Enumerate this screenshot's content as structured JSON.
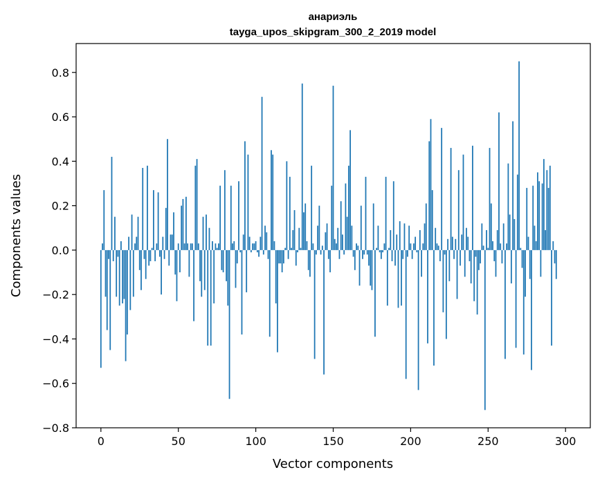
{
  "chart_data": {
    "type": "bar",
    "title": "анариэль",
    "subtitle": "tayga_upos_skipgram_300_2_2019 model",
    "xlabel": "Vector components",
    "ylabel": "Components values",
    "xlim": [
      -16,
      316
    ],
    "ylim": [
      -0.8,
      0.93
    ],
    "xticks": [
      0,
      50,
      100,
      150,
      200,
      250,
      300
    ],
    "xtick_labels": [
      "0",
      "50",
      "100",
      "150",
      "200",
      "250",
      "300"
    ],
    "yticks": [
      -0.8,
      -0.6,
      -0.4,
      -0.2,
      0.0,
      0.2,
      0.4,
      0.6,
      0.8
    ],
    "ytick_labels": [
      "−0.8",
      "−0.6",
      "−0.4",
      "−0.2",
      "0.0",
      "0.2",
      "0.4",
      "0.6",
      "0.8"
    ],
    "bar_color": "#1f77b4",
    "grid": false,
    "legend": "none",
    "values": [
      -0.53,
      0.03,
      0.27,
      -0.21,
      -0.36,
      -0.04,
      -0.45,
      0.42,
      -0.05,
      0.15,
      -0.21,
      -0.03,
      -0.25,
      0.04,
      -0.24,
      -0.22,
      -0.5,
      -0.38,
      0.06,
      -0.27,
      0.16,
      -0.21,
      0.03,
      0.06,
      0.15,
      -0.09,
      -0.18,
      0.37,
      -0.04,
      -0.13,
      0.38,
      -0.07,
      -0.05,
      0.01,
      0.27,
      -0.05,
      0.03,
      0.26,
      -0.03,
      -0.2,
      0.06,
      -0.04,
      0.19,
      0.5,
      -0.07,
      0.07,
      0.07,
      0.17,
      -0.11,
      -0.23,
      0.03,
      -0.1,
      0.2,
      0.23,
      0.03,
      0.24,
      0.03,
      -0.12,
      0.03,
      0.03,
      -0.32,
      0.38,
      0.41,
      0.03,
      -0.14,
      -0.21,
      0.15,
      -0.18,
      0.16,
      -0.43,
      0.1,
      -0.43,
      0.04,
      -0.24,
      0.03,
      0.01,
      0.03,
      0.29,
      -0.09,
      -0.1,
      0.36,
      -0.14,
      -0.25,
      -0.67,
      0.29,
      0.03,
      0.04,
      -0.17,
      -0.06,
      0.31,
      -0.01,
      -0.38,
      0.07,
      0.49,
      -0.19,
      0.43,
      0.06,
      -0.01,
      0.03,
      0.03,
      0.04,
      -0.01,
      -0.03,
      0.06,
      0.69,
      -0.02,
      0.11,
      0.08,
      -0.04,
      -0.39,
      0.45,
      0.43,
      0.04,
      -0.24,
      -0.46,
      -0.06,
      -0.06,
      -0.1,
      -0.06,
      0.01,
      0.4,
      -0.04,
      0.33,
      0.01,
      0.09,
      0.18,
      -0.07,
      -0.01,
      0.1,
      0.01,
      0.75,
      0.17,
      0.21,
      0.04,
      -0.09,
      -0.12,
      0.38,
      0.03,
      -0.49,
      -0.02,
      0.11,
      0.2,
      -0.02,
      0.02,
      -0.56,
      0.08,
      0.12,
      -0.04,
      -0.1,
      0.29,
      0.74,
      0.05,
      0.03,
      0.1,
      -0.04,
      0.22,
      0.07,
      -0.02,
      0.3,
      0.15,
      0.38,
      0.54,
      0.11,
      -0.03,
      -0.09,
      0.03,
      0.02,
      -0.16,
      0.2,
      -0.04,
      -0.02,
      0.33,
      -0.02,
      -0.07,
      -0.16,
      -0.18,
      0.21,
      -0.39,
      0.01,
      0.11,
      -0.01,
      -0.04,
      -0.01,
      0.03,
      0.33,
      -0.25,
      0.01,
      0.09,
      -0.05,
      0.31,
      -0.07,
      0.07,
      -0.26,
      0.13,
      -0.25,
      -0.04,
      0.12,
      -0.58,
      -0.03,
      0.11,
      0.03,
      -0.04,
      0.03,
      0.06,
      -0.01,
      -0.63,
      0.09,
      -0.12,
      0.03,
      0.12,
      0.21,
      -0.42,
      0.49,
      0.59,
      0.27,
      -0.52,
      0.1,
      0.03,
      0.02,
      -0.05,
      0.55,
      -0.28,
      -0.02,
      -0.4,
      0.05,
      -0.14,
      0.46,
      0.06,
      -0.04,
      0.05,
      -0.22,
      0.36,
      -0.07,
      0.07,
      0.43,
      -0.12,
      0.1,
      0.06,
      -0.05,
      -0.15,
      0.47,
      -0.23,
      -0.03,
      -0.29,
      -0.09,
      -0.06,
      0.12,
      0.02,
      -0.72,
      0.09,
      0.01,
      0.46,
      0.21,
      0.04,
      -0.05,
      -0.12,
      0.09,
      0.62,
      0.03,
      -0.06,
      0.12,
      -0.49,
      0.03,
      0.39,
      0.16,
      -0.15,
      0.58,
      0.14,
      -0.44,
      0.34,
      0.85,
      0.01,
      -0.08,
      -0.47,
      -0.21,
      0.28,
      0.06,
      -0.13,
      -0.54,
      0.29,
      0.11,
      0.04,
      0.35,
      0.31,
      -0.12,
      0.3,
      0.41,
      0.09,
      0.36,
      0.28,
      0.38,
      -0.43,
      0.04,
      -0.06,
      -0.13
    ]
  }
}
